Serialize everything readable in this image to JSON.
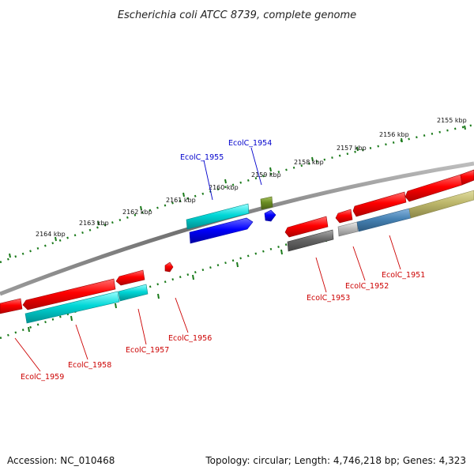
{
  "title": "Escherichia coli ATCC 8739, complete genome",
  "footer": {
    "accession_prefix": "Accession:",
    "accession": "NC_010468",
    "topology_text": "Topology: circular; Length: 4,746,218 bp; Genes: 4,323"
  },
  "colors": {
    "backbone": "#808080",
    "tick": "#1a7a1a",
    "label_red": "#cc0000",
    "label_blue": "#0000cc",
    "gene_red": "#ff0000",
    "gene_cyan": "#00cccc",
    "gene_blue": "#0000ff",
    "gene_olive": "#6b8e23",
    "gene_gray": "#777777",
    "gene_lightgray": "#bbbbbb",
    "gene_steelblue": "#4682b4",
    "gene_khaki": "#bdb76b"
  },
  "scale": {
    "unit": "kbp",
    "ticks": [
      {
        "label": "2155 kbp"
      },
      {
        "label": "2156 kbp"
      },
      {
        "label": "2157 kbp"
      },
      {
        "label": "2158 kbp"
      },
      {
        "label": "2159 kbp"
      },
      {
        "label": "2160 kbp"
      },
      {
        "label": "2161 kbp"
      },
      {
        "label": "2162 kbp"
      },
      {
        "label": "2163 kbp"
      },
      {
        "label": "2164 kbp"
      }
    ]
  },
  "gene_labels": [
    {
      "id": "EcolC_1955",
      "color": "label_blue"
    },
    {
      "id": "EcolC_1954",
      "color": "label_blue"
    },
    {
      "id": "EcolC_1959",
      "color": "label_red"
    },
    {
      "id": "EcolC_1958",
      "color": "label_red"
    },
    {
      "id": "EcolC_1957",
      "color": "label_red"
    },
    {
      "id": "EcolC_1956",
      "color": "label_red"
    },
    {
      "id": "EcolC_1953",
      "color": "label_red"
    },
    {
      "id": "EcolC_1952",
      "color": "label_red"
    },
    {
      "id": "EcolC_1951",
      "color": "label_red"
    }
  ]
}
